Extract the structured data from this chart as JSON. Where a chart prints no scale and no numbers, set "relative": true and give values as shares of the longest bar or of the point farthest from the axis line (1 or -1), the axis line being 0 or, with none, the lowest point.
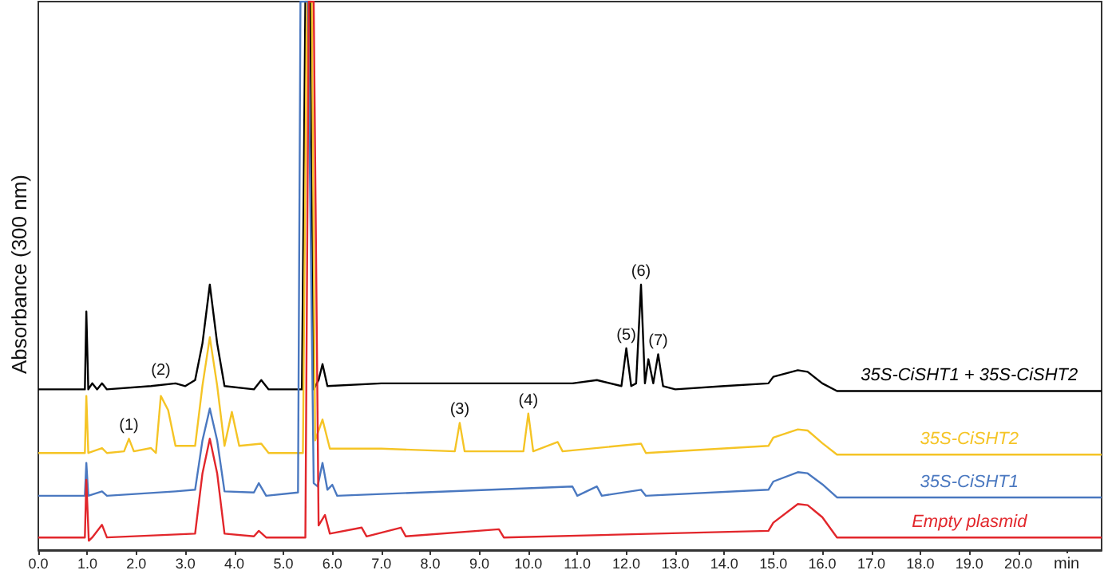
{
  "chart_data": {
    "type": "line",
    "relative": true,
    "ylabel": "Absorbance (300 nm)",
    "xlabel": "min",
    "xlim": [
      0,
      21.7
    ],
    "xticks": [
      {
        "value": 0,
        "label": "0.0"
      },
      {
        "value": 1,
        "label": "1.0"
      },
      {
        "value": 2,
        "label": "2.0"
      },
      {
        "value": 3,
        "label": "3.0"
      },
      {
        "value": 4,
        "label": "4.0"
      },
      {
        "value": 5,
        "label": "5.0"
      },
      {
        "value": 6,
        "label": "6.0"
      },
      {
        "value": 7,
        "label": "7.0"
      },
      {
        "value": 8,
        "label": "8.0"
      },
      {
        "value": 9,
        "label": "9.0"
      },
      {
        "value": 10,
        "label": "10.0"
      },
      {
        "value": 11,
        "label": "11.0"
      },
      {
        "value": 12,
        "label": "12.0"
      },
      {
        "value": 13,
        "label": "13.0"
      },
      {
        "value": 14,
        "label": "14.0"
      },
      {
        "value": 15,
        "label": "15.0"
      },
      {
        "value": 16,
        "label": "16.0"
      },
      {
        "value": 17,
        "label": "17.0"
      },
      {
        "value": 18,
        "label": "18.0"
      },
      {
        "value": 19,
        "label": "19.0"
      },
      {
        "value": 20,
        "label": "20.0"
      }
    ],
    "legend": false,
    "grid": false,
    "marker": "none",
    "annotations": [
      {
        "text": "(1)",
        "x": 1.85,
        "y": 0.203
      },
      {
        "text": "(2)",
        "x": 2.5,
        "y": 0.281
      },
      {
        "text": "(3)",
        "x": 8.6,
        "y": 0.232
      },
      {
        "text": "(4)",
        "x": 10.0,
        "y": 0.249
      },
      {
        "text": "(5)",
        "x": 12.0,
        "y": 0.368
      },
      {
        "text": "(6)",
        "x": 12.3,
        "y": 0.484
      },
      {
        "text": "(7)",
        "x": 12.65,
        "y": 0.357
      }
    ],
    "series": [
      {
        "name": "35S-CiSHT1 + 35S-CiSHT2",
        "color": "#000000",
        "x": [
          0,
          0.95,
          0.98,
          1.02,
          1.1,
          1.2,
          1.3,
          1.4,
          2.3,
          2.8,
          3.0,
          3.2,
          3.35,
          3.5,
          3.65,
          3.8,
          4.4,
          4.55,
          4.7,
          5.38,
          5.45,
          5.55,
          5.62,
          5.72,
          5.8,
          5.9,
          7.0,
          9.5,
          10.9,
          11.4,
          11.9,
          12.0,
          12.1,
          12.2,
          12.3,
          12.38,
          12.45,
          12.55,
          12.65,
          12.75,
          13.0,
          14.0,
          14.9,
          15.0,
          15.5,
          15.7,
          16.0,
          16.3,
          19,
          21.7
        ],
        "values": [
          0.293,
          0.293,
          0.435,
          0.293,
          0.304,
          0.293,
          0.304,
          0.293,
          0.299,
          0.304,
          0.299,
          0.31,
          0.377,
          0.484,
          0.377,
          0.299,
          0.293,
          0.31,
          0.293,
          0.293,
          1,
          1,
          0.293,
          0.31,
          0.339,
          0.299,
          0.304,
          0.304,
          0.304,
          0.31,
          0.299,
          0.368,
          0.299,
          0.304,
          0.484,
          0.304,
          0.348,
          0.304,
          0.357,
          0.299,
          0.293,
          0.299,
          0.304,
          0.316,
          0.328,
          0.325,
          0.304,
          0.29,
          0.29,
          0.29
        ]
      },
      {
        "name": "35S-CiSHT2",
        "color": "#f5c425",
        "x": [
          0,
          0.95,
          0.98,
          1.02,
          1.3,
          1.4,
          1.75,
          1.85,
          1.95,
          2.3,
          2.4,
          2.5,
          2.65,
          2.8,
          3.2,
          3.35,
          3.5,
          3.65,
          3.8,
          3.95,
          4.1,
          4.55,
          4.7,
          5.4,
          5.48,
          5.58,
          5.65,
          5.8,
          5.95,
          7.0,
          8.5,
          8.6,
          8.7,
          9.9,
          10.0,
          10.1,
          10.6,
          10.7,
          12.3,
          12.4,
          14.9,
          15.0,
          15.5,
          15.7,
          16.0,
          16.3,
          19,
          21.7
        ],
        "values": [
          0.177,
          0.177,
          0.281,
          0.177,
          0.186,
          0.177,
          0.18,
          0.203,
          0.18,
          0.186,
          0.177,
          0.281,
          0.255,
          0.19,
          0.19,
          0.3,
          0.388,
          0.3,
          0.19,
          0.252,
          0.19,
          0.194,
          0.177,
          0.177,
          1,
          1,
          0.2,
          0.238,
          0.185,
          0.185,
          0.18,
          0.232,
          0.18,
          0.18,
          0.249,
          0.18,
          0.197,
          0.18,
          0.194,
          0.177,
          0.19,
          0.205,
          0.22,
          0.218,
          0.195,
          0.174,
          0.174,
          0.174
        ]
      },
      {
        "name": "35S-CiSHT1",
        "color": "#4a78c0",
        "x": [
          0,
          0.95,
          0.98,
          1.02,
          1.3,
          1.4,
          2.8,
          3.2,
          3.35,
          3.5,
          3.65,
          3.8,
          4.4,
          4.5,
          4.65,
          5.3,
          5.35,
          5.5,
          5.62,
          5.7,
          5.8,
          5.9,
          6.0,
          6.1,
          10.9,
          11.0,
          11.4,
          11.5,
          12.3,
          12.4,
          14.9,
          15.0,
          15.5,
          15.7,
          16.0,
          16.3,
          19,
          21.7
        ],
        "values": [
          0.099,
          0.099,
          0.159,
          0.099,
          0.107,
          0.099,
          0.107,
          0.11,
          0.2,
          0.258,
          0.2,
          0.107,
          0.105,
          0.122,
          0.099,
          0.105,
          1,
          1,
          0.122,
          0.116,
          0.159,
          0.11,
          0.119,
          0.099,
          0.116,
          0.099,
          0.116,
          0.099,
          0.11,
          0.099,
          0.11,
          0.125,
          0.142,
          0.14,
          0.12,
          0.096,
          0.096,
          0.096
        ]
      },
      {
        "name": "Empty plasmid",
        "color": "#e2262b",
        "x": [
          0,
          0.95,
          0.98,
          1.03,
          1.1,
          1.3,
          1.4,
          3.2,
          3.35,
          3.5,
          3.65,
          3.8,
          4.4,
          4.5,
          4.65,
          5.45,
          5.52,
          5.62,
          5.72,
          5.85,
          5.95,
          6.6,
          6.7,
          7.4,
          7.5,
          9.4,
          9.5,
          14.9,
          15.0,
          15.5,
          15.7,
          16.0,
          16.3,
          19,
          21.7
        ],
        "values": [
          0.023,
          0.023,
          0.128,
          0.017,
          0.023,
          0.046,
          0.023,
          0.03,
          0.14,
          0.203,
          0.14,
          0.03,
          0.025,
          0.035,
          0.023,
          0.023,
          1,
          1,
          0.045,
          0.064,
          0.03,
          0.041,
          0.025,
          0.041,
          0.025,
          0.038,
          0.023,
          0.035,
          0.05,
          0.084,
          0.082,
          0.06,
          0.023,
          0.023,
          0.023
        ]
      }
    ]
  }
}
